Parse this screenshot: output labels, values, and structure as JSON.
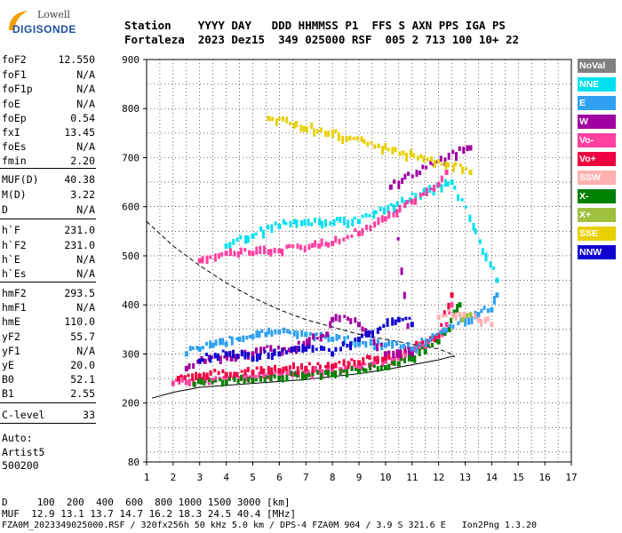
{
  "logo": {
    "line1": "Lowell",
    "line2": "DIGISONDE"
  },
  "header": {
    "labels": "Station    YYYY DAY   DDD HHMMSS P1  FFS S AXN PPS IGA PS",
    "values": "Fortaleza  2023 Dez15  349 025000 RSF  005 2 713 100 10+ 22"
  },
  "parameters": [
    {
      "label": "foF2",
      "value": "12.550"
    },
    {
      "label": "foF1",
      "value": "N/A"
    },
    {
      "label": "foF1p",
      "value": "N/A"
    },
    {
      "label": "foE",
      "value": "N/A"
    },
    {
      "label": "foEp",
      "value": "0.54"
    },
    {
      "label": "fxI",
      "value": "13.45"
    },
    {
      "label": "foEs",
      "value": "N/A"
    },
    {
      "label": "fmin",
      "value": "2.20"
    },
    {
      "label": "MUF(D)",
      "value": "40.38"
    },
    {
      "label": "M(D)",
      "value": "3.22"
    },
    {
      "label": "D",
      "value": "N/A"
    },
    {
      "label": "h`F",
      "value": "231.0"
    },
    {
      "label": "h`F2",
      "value": "231.0"
    },
    {
      "label": "h`E",
      "value": "N/A"
    },
    {
      "label": "h`Es",
      "value": "N/A"
    },
    {
      "label": "hmF2",
      "value": "293.5"
    },
    {
      "label": "hmF1",
      "value": "N/A"
    },
    {
      "label": "hmE",
      "value": "110.0"
    },
    {
      "label": "yF2",
      "value": "55.7"
    },
    {
      "label": "yF1",
      "value": "N/A"
    },
    {
      "label": "yE",
      "value": "20.0"
    },
    {
      "label": "B0",
      "value": "52.1"
    },
    {
      "label": "B1",
      "value": "2.55"
    },
    {
      "label": "C-level",
      "value": "33"
    }
  ],
  "auto": {
    "line1": "Auto:",
    "line2": "Artist5",
    "line3": "500200"
  },
  "legend": [
    {
      "label": "NoVal",
      "color": "#808080"
    },
    {
      "label": "NNE",
      "color": "#00e0f0"
    },
    {
      "label": "E",
      "color": "#30a0f0"
    },
    {
      "label": "W",
      "color": "#a000a0"
    },
    {
      "label": "Vo-",
      "color": "#ff40a0"
    },
    {
      "label": "Vo+",
      "color": "#f00040"
    },
    {
      "label": "SSW",
      "color": "#ffb0b0"
    },
    {
      "label": "X-",
      "color": "#008000"
    },
    {
      "label": "X+",
      "color": "#a0c040"
    },
    {
      "label": "SSE",
      "color": "#e8d000"
    },
    {
      "label": "NNW",
      "color": "#1000d0"
    }
  ],
  "footer": {
    "line1": "D     100  200  400  600  800 1000 1500 3000 [km]",
    "line2": "MUF  12.9 13.1 13.7 14.7 16.2 18.3 24.5 40.4 [MHz]",
    "line3": "FZA0M_2023349025000.RSF / 320fx256h 50 kHz 5.0 km / DPS-4 FZA0M 904 / 3.9 S 321.6 E   Ion2Png 1.3.20"
  },
  "chart_data": {
    "type": "scatter",
    "title": "",
    "xlabel": "",
    "ylabel": "",
    "xlim": [
      1,
      17
    ],
    "ylim": [
      80,
      900
    ],
    "x_ticks": [
      "1",
      "2",
      "3",
      "4",
      "5",
      "6",
      "7",
      "8",
      "9",
      "10",
      "11",
      "12",
      "13",
      "14",
      "15",
      "16",
      "17"
    ],
    "y_ticks": [
      "80",
      "200",
      "300",
      "400",
      "500",
      "600",
      "700",
      "800",
      "900"
    ],
    "grid": true,
    "series": [
      {
        "name": "Vo-",
        "color": "#ff40a0",
        "points": [
          [
            2.0,
            240
          ],
          [
            2.5,
            242
          ],
          [
            3,
            244
          ],
          [
            3.5,
            246
          ],
          [
            4,
            248
          ],
          [
            4.5,
            250
          ],
          [
            5,
            252
          ],
          [
            5.5,
            254
          ],
          [
            6,
            256
          ],
          [
            6.5,
            258
          ],
          [
            7,
            260
          ],
          [
            7.5,
            263
          ],
          [
            8,
            266
          ],
          [
            8.5,
            270
          ],
          [
            9,
            274
          ],
          [
            9.5,
            279
          ],
          [
            10,
            285
          ],
          [
            10.5,
            292
          ],
          [
            11,
            301
          ],
          [
            11.5,
            315
          ],
          [
            12,
            335
          ],
          [
            12.3,
            360
          ],
          [
            12.5,
            400
          ]
        ]
      },
      {
        "name": "X-",
        "color": "#008000",
        "points": [
          [
            2.8,
            238
          ],
          [
            4,
            242
          ],
          [
            5,
            246
          ],
          [
            6,
            250
          ],
          [
            7,
            254
          ],
          [
            8,
            258
          ],
          [
            9,
            264
          ],
          [
            10,
            272
          ],
          [
            10.5,
            280
          ],
          [
            11,
            290
          ],
          [
            11.5,
            305
          ],
          [
            12,
            325
          ],
          [
            12.4,
            350
          ],
          [
            12.6,
            385
          ],
          [
            12.8,
            400
          ]
        ]
      },
      {
        "name": "Vo+",
        "color": "#f00040",
        "points": [
          [
            2.2,
            250
          ],
          [
            3,
            255
          ],
          [
            4,
            258
          ],
          [
            5,
            262
          ],
          [
            6,
            266
          ],
          [
            7,
            270
          ],
          [
            8,
            275
          ],
          [
            9,
            282
          ],
          [
            10,
            292
          ],
          [
            11,
            308
          ],
          [
            12,
            338
          ],
          [
            12.5,
            420
          ]
        ]
      },
      {
        "name": "E",
        "color": "#30a0f0",
        "points": [
          [
            2.5,
            300
          ],
          [
            3,
            310
          ],
          [
            3.5,
            318
          ],
          [
            4,
            320
          ],
          [
            4.5,
            330
          ],
          [
            5,
            335
          ],
          [
            5.5,
            340
          ],
          [
            6,
            345
          ],
          [
            7,
            340
          ],
          [
            8,
            330
          ],
          [
            9,
            320
          ],
          [
            10,
            318
          ],
          [
            11,
            310
          ],
          [
            13.5,
            380
          ],
          [
            14,
            390
          ],
          [
            14.2,
            420
          ]
        ]
      },
      {
        "name": "W",
        "color": "#a000a0",
        "points": [
          [
            2.5,
            270
          ],
          [
            3.2,
            285
          ],
          [
            4.2,
            290
          ],
          [
            5,
            300
          ],
          [
            6.5,
            310
          ],
          [
            7.8,
            340
          ],
          [
            8,
            370
          ],
          [
            9,
            360
          ],
          [
            10,
            300
          ],
          [
            11,
            300
          ],
          [
            10.2,
            640
          ],
          [
            13.2,
            720
          ]
        ]
      },
      {
        "name": "NNW",
        "color": "#1000d0",
        "points": [
          [
            3,
            285
          ],
          [
            4,
            300
          ],
          [
            5,
            290
          ],
          [
            6,
            300
          ],
          [
            7,
            310
          ],
          [
            8,
            300
          ],
          [
            9,
            330
          ],
          [
            10.5,
            370
          ],
          [
            11,
            360
          ]
        ]
      },
      {
        "name": "SSW",
        "color": "#ffb0b0",
        "points": [
          [
            12,
            375
          ],
          [
            12.8,
            380
          ],
          [
            13.5,
            370
          ],
          [
            14,
            360
          ]
        ]
      },
      {
        "name": "X+",
        "color": "#a0c040",
        "points": [
          [
            12.9,
            370
          ],
          [
            13.2,
            380
          ]
        ]
      },
      {
        "name": "SSE",
        "color": "#e8d000",
        "points": [
          [
            13.2,
            670
          ],
          [
            5.6,
            780
          ]
        ]
      },
      {
        "name": "NNE",
        "color": "#00e0f0",
        "points": [
          [
            4,
            520
          ],
          [
            5,
            540
          ],
          [
            6,
            560
          ],
          [
            9,
            570
          ],
          [
            12.5,
            650
          ],
          [
            14.2,
            450
          ]
        ]
      },
      {
        "name": "Vo- (2nd hop)",
        "color": "#ff40a0",
        "points": [
          [
            3,
            490
          ],
          [
            4,
            505
          ],
          [
            5,
            505
          ],
          [
            6,
            510
          ],
          [
            7.5,
            520
          ],
          [
            8,
            525
          ],
          [
            9,
            545
          ],
          [
            10,
            575
          ],
          [
            11,
            610
          ],
          [
            12,
            645
          ],
          [
            12.3,
            670
          ]
        ]
      }
    ],
    "model_curves": [
      {
        "name": "dashed",
        "points": [
          [
            1,
            570
          ],
          [
            1.5,
            545
          ],
          [
            2,
            520
          ],
          [
            3,
            480
          ],
          [
            4,
            445
          ],
          [
            5,
            415
          ],
          [
            6,
            390
          ],
          [
            7,
            370
          ],
          [
            8,
            355
          ],
          [
            9,
            340
          ],
          [
            10,
            330
          ],
          [
            11,
            320
          ],
          [
            12,
            310
          ],
          [
            12.5,
            300
          ],
          [
            12.6,
            295
          ]
        ]
      },
      {
        "name": "solid",
        "points": [
          [
            1.2,
            210
          ],
          [
            2,
            222
          ],
          [
            3,
            232
          ],
          [
            4,
            236
          ],
          [
            5,
            240
          ],
          [
            6,
            244
          ],
          [
            7,
            248
          ],
          [
            8,
            254
          ],
          [
            9,
            260
          ],
          [
            10,
            268
          ],
          [
            11,
            278
          ],
          [
            12,
            288
          ],
          [
            12.5,
            295
          ],
          [
            12.6,
            295
          ]
        ]
      }
    ]
  }
}
